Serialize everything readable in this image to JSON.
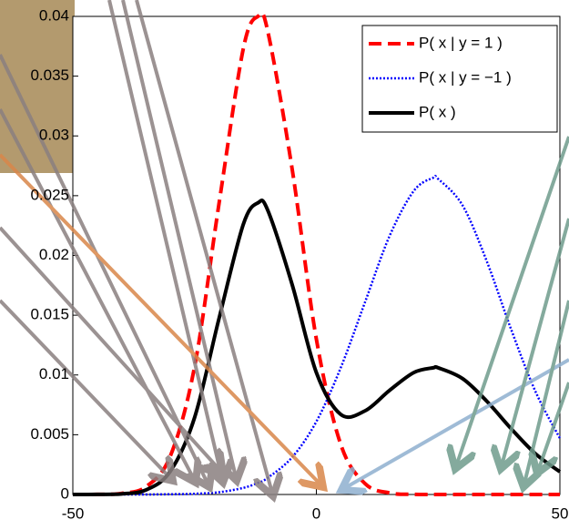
{
  "chart_data": {
    "type": "line",
    "x": [
      -50,
      -45,
      -40,
      -35,
      -30,
      -25,
      -20,
      -15,
      -12,
      -10,
      -5,
      0,
      5,
      10,
      15,
      20,
      24,
      25,
      30,
      35,
      40,
      45,
      50
    ],
    "series": [
      {
        "name": "P( x | y = 1 )",
        "color": "#ff0000",
        "style": "dashed",
        "values": [
          0,
          1e-05,
          9e-05,
          0.00064,
          0.0032,
          0.0107,
          0.0243,
          0.0373,
          0.04,
          0.0388,
          0.0273,
          0.013,
          0.0042,
          0.00091,
          0.00013,
          1e-05,
          0,
          0,
          0,
          0,
          0,
          0,
          0
        ]
      },
      {
        "name": "P( x | y = −1 )",
        "color": "#0000ff",
        "style": "dotted",
        "values": [
          0,
          0,
          0,
          0,
          2e-05,
          6e-05,
          0.00019,
          0.00055,
          0.00097,
          0.00139,
          0.0031,
          0.0061,
          0.0106,
          0.0161,
          0.0216,
          0.0254,
          0.0265,
          0.0264,
          0.0242,
          0.0195,
          0.0138,
          0.0086,
          0.0047
        ]
      },
      {
        "name": "P( x )",
        "color": "#000000",
        "style": "solid",
        "values": [
          0,
          1e-05,
          5e-05,
          0.00038,
          0.00193,
          0.00644,
          0.0147,
          0.0226,
          0.0244,
          0.0238,
          0.0176,
          0.0102,
          0.0067,
          0.007,
          0.0087,
          0.0102,
          0.0106,
          0.0106,
          0.0097,
          0.0078,
          0.0055,
          0.0034,
          0.0019
        ]
      }
    ],
    "xlim": [
      -50,
      50
    ],
    "xticks": [
      -50,
      0,
      50
    ],
    "ylim": [
      0,
      0.04
    ],
    "yticks": [
      0,
      0.005,
      0.01,
      0.015,
      0.02,
      0.025,
      0.03,
      0.035,
      0.04
    ],
    "legend": "upper right"
  }
}
